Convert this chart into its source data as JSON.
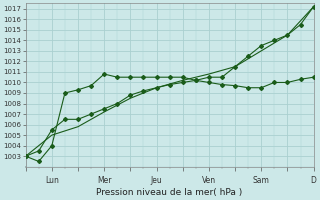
{
  "background_color": "#cce8e8",
  "grid_color": "#aad0d0",
  "line_color": "#1a5c1a",
  "ylim": [
    1002.0,
    1017.5
  ],
  "yticks": [
    1003,
    1004,
    1005,
    1006,
    1007,
    1008,
    1009,
    1010,
    1011,
    1012,
    1013,
    1014,
    1015,
    1016,
    1017
  ],
  "xlabel": "Pression niveau de la mer( hPa )",
  "xlim": [
    0,
    22
  ],
  "day_labels": [
    "",
    "Lun",
    "",
    "Mer",
    "",
    "Jeu",
    "",
    "Ven",
    "",
    "Sam",
    "",
    "D"
  ],
  "day_positions": [
    0,
    2,
    4,
    6,
    8,
    10,
    12,
    14,
    16,
    18,
    20,
    22
  ],
  "line_straight_x": [
    0,
    2,
    4,
    6,
    8,
    10,
    12,
    14,
    16,
    18,
    20,
    22
  ],
  "line_straight_y": [
    1003.0,
    1005.0,
    1005.8,
    1007.2,
    1008.5,
    1009.5,
    1010.2,
    1010.8,
    1011.5,
    1013.0,
    1014.5,
    1017.2
  ],
  "line_jagged_x": [
    0,
    1,
    2,
    3,
    4,
    5,
    6,
    7,
    8,
    9,
    10,
    11,
    12,
    13,
    14,
    15,
    16,
    17,
    18,
    19,
    20,
    21,
    22
  ],
  "line_jagged_y": [
    1003.0,
    1002.5,
    1004.0,
    1009.0,
    1009.3,
    1009.7,
    1010.8,
    1010.5,
    1010.5,
    1010.5,
    1010.5,
    1010.5,
    1010.5,
    1010.2,
    1010.0,
    1009.8,
    1009.7,
    1009.5,
    1009.5,
    1010.0,
    1010.0,
    1010.3,
    1010.5
  ],
  "line_mid_x": [
    0,
    1,
    2,
    3,
    4,
    5,
    6,
    7,
    8,
    9,
    10,
    11,
    12,
    13,
    14,
    15,
    16,
    17,
    18,
    19,
    20,
    21,
    22
  ],
  "line_mid_y": [
    1003.0,
    1003.5,
    1005.5,
    1006.5,
    1006.5,
    1007.0,
    1007.5,
    1008.0,
    1008.8,
    1009.2,
    1009.5,
    1009.8,
    1010.0,
    1010.2,
    1010.5,
    1010.5,
    1011.5,
    1012.5,
    1013.5,
    1014.0,
    1014.5,
    1015.5,
    1017.2
  ]
}
